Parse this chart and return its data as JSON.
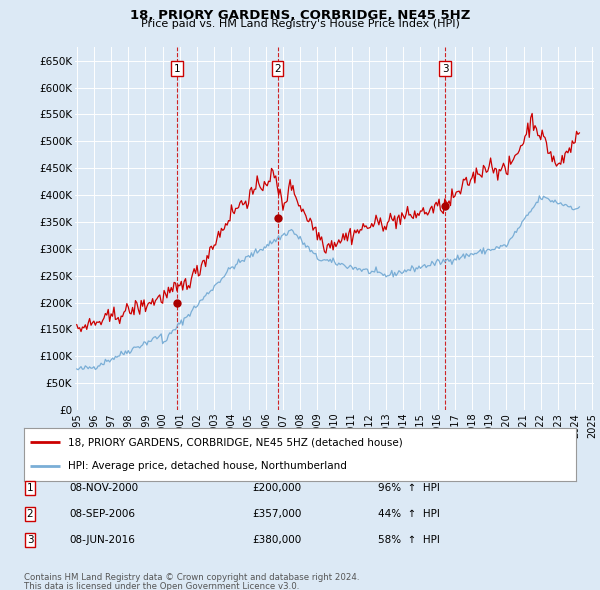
{
  "title": "18, PRIORY GARDENS, CORBRIDGE, NE45 5HZ",
  "subtitle": "Price paid vs. HM Land Registry's House Price Index (HPI)",
  "ylim": [
    0,
    675000
  ],
  "yticks": [
    0,
    50000,
    100000,
    150000,
    200000,
    250000,
    300000,
    350000,
    400000,
    450000,
    500000,
    550000,
    600000,
    650000
  ],
  "ytick_labels": [
    "£0",
    "£50K",
    "£100K",
    "£150K",
    "£200K",
    "£250K",
    "£300K",
    "£350K",
    "£400K",
    "£450K",
    "£500K",
    "£550K",
    "£600K",
    "£650K"
  ],
  "background_color": "#dce9f5",
  "plot_bg_color": "#dce9f5",
  "grid_color": "#ffffff",
  "red_line_color": "#cc0000",
  "blue_line_color": "#7aaed6",
  "sale_marker_color": "#aa0000",
  "dashed_line_color": "#cc0000",
  "sales": [
    {
      "index": 1,
      "date_str": "08-NOV-2000",
      "price": 200000,
      "pct": "96%",
      "direction": "↑"
    },
    {
      "index": 2,
      "date_str": "08-SEP-2006",
      "price": 357000,
      "pct": "44%",
      "direction": "↑"
    },
    {
      "index": 3,
      "date_str": "08-JUN-2016",
      "price": 380000,
      "pct": "58%",
      "direction": "↑"
    }
  ],
  "legend_label_red": "18, PRIORY GARDENS, CORBRIDGE, NE45 5HZ (detached house)",
  "legend_label_blue": "HPI: Average price, detached house, Northumberland",
  "footer_line1": "Contains HM Land Registry data © Crown copyright and database right 2024.",
  "footer_line2": "This data is licensed under the Open Government Licence v3.0.",
  "sale_dates": [
    2000.856,
    2006.688,
    2016.44
  ],
  "sale_prices": [
    200000,
    357000,
    380000
  ],
  "sale_labels": [
    "1",
    "2",
    "3"
  ],
  "vline_dates": [
    2000.856,
    2006.688,
    2016.44
  ],
  "xlim": [
    1994.9,
    2025.1
  ],
  "xtick_years": [
    1995,
    1996,
    1997,
    1998,
    1999,
    2000,
    2001,
    2002,
    2003,
    2004,
    2005,
    2006,
    2007,
    2008,
    2009,
    2010,
    2011,
    2012,
    2013,
    2014,
    2015,
    2016,
    2017,
    2018,
    2019,
    2020,
    2021,
    2022,
    2023,
    2024,
    2025
  ]
}
